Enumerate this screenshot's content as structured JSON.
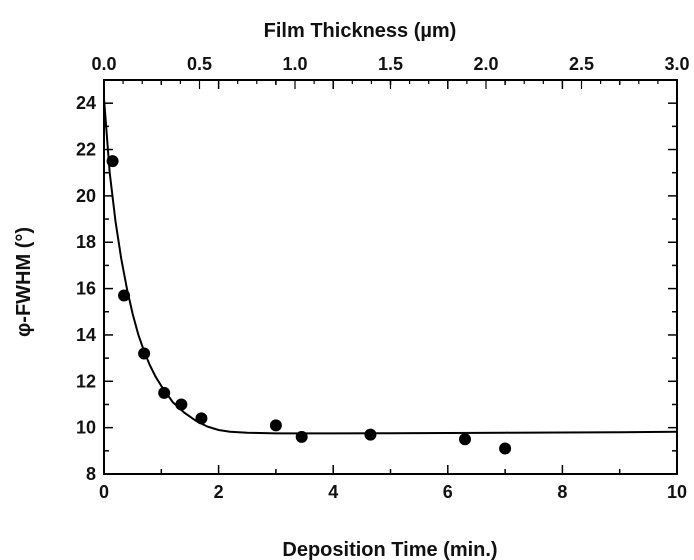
{
  "chart_data": {
    "type": "scatter",
    "title": "",
    "xlabel": "Deposition Time  (min.)",
    "x2label": "Film Thickness  (µm)",
    "ylabel": "φ-FWHM  (°)",
    "xlim": [
      0,
      10
    ],
    "x2lim": [
      0.0,
      3.0
    ],
    "ylim": [
      8,
      25
    ],
    "xticks": [
      "0",
      "2",
      "4",
      "6",
      "8",
      "10"
    ],
    "x2ticks": [
      "0.0",
      "0.5",
      "1.0",
      "1.5",
      "2.0",
      "2.5",
      "3.0"
    ],
    "yticks": [
      "8",
      "10",
      "12",
      "14",
      "16",
      "18",
      "20",
      "22",
      "24"
    ],
    "grid": false,
    "colors": {
      "points": "#000000",
      "fit": "#000000",
      "frame": "#000000"
    },
    "series": [
      {
        "kind": "points",
        "points": [
          {
            "x": 0.15,
            "y": 21.5
          },
          {
            "x": 0.35,
            "y": 15.7
          },
          {
            "x": 0.7,
            "y": 13.2
          },
          {
            "x": 1.05,
            "y": 11.5
          },
          {
            "x": 1.35,
            "y": 11.0
          },
          {
            "x": 1.7,
            "y": 10.4
          },
          {
            "x": 3.0,
            "y": 10.1
          },
          {
            "x": 3.45,
            "y": 9.6
          },
          {
            "x": 4.65,
            "y": 9.7
          },
          {
            "x": 6.3,
            "y": 9.5
          },
          {
            "x": 7.0,
            "y": 9.1
          }
        ]
      },
      {
        "kind": "fit",
        "x": [
          0,
          0.1,
          0.2,
          0.3,
          0.4,
          0.5,
          0.6,
          0.7,
          0.8,
          0.9,
          1.0,
          1.2,
          1.4,
          1.6,
          1.8,
          2.0,
          2.2,
          2.5,
          3.0,
          4.0,
          5.0,
          6.0,
          7.0,
          8.0,
          9.0,
          10.0
        ],
        "y": [
          24.2,
          21.0,
          18.9,
          17.3,
          16.0,
          14.9,
          14.0,
          13.3,
          12.7,
          12.2,
          11.8,
          11.1,
          10.65,
          10.3,
          10.05,
          9.9,
          9.82,
          9.78,
          9.75,
          9.75,
          9.76,
          9.77,
          9.78,
          9.79,
          9.8,
          9.82
        ]
      }
    ]
  }
}
